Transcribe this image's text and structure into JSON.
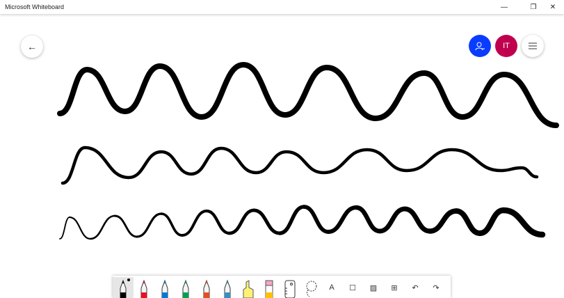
{
  "window": {
    "title": "Microsoft Whiteboard",
    "controls": [
      "minimize",
      "restore",
      "close"
    ]
  },
  "header": {
    "back_icon": "arrow-left-icon",
    "invite_icon": "person-add-icon",
    "user_initials": "IT",
    "menu_icon": "hamburger-icon",
    "colors": {
      "invite": "#0a3cff",
      "user": "#c0004e"
    }
  },
  "toolbar": {
    "tools": [
      {
        "name": "pen-black",
        "color": "#000000",
        "selected": true
      },
      {
        "name": "pen-red",
        "color": "#e81123"
      },
      {
        "name": "pen-blue",
        "color": "#0078d7"
      },
      {
        "name": "pen-green",
        "color": "#00a050"
      },
      {
        "name": "pen-rainbow",
        "color": "#e05020"
      },
      {
        "name": "pen-galaxy",
        "color": "#3a8ec0"
      },
      {
        "name": "highlighter",
        "color": "#fff176"
      },
      {
        "name": "eraser",
        "color": "#f4a6c8"
      },
      {
        "name": "ruler"
      },
      {
        "name": "lasso"
      }
    ],
    "actions": [
      {
        "name": "text",
        "label": "A"
      },
      {
        "name": "sticky-note",
        "label": "☐"
      },
      {
        "name": "image",
        "label": "▨"
      },
      {
        "name": "insert",
        "label": "⊞"
      },
      {
        "name": "undo",
        "label": "↶"
      },
      {
        "name": "redo",
        "label": "↷"
      }
    ]
  }
}
